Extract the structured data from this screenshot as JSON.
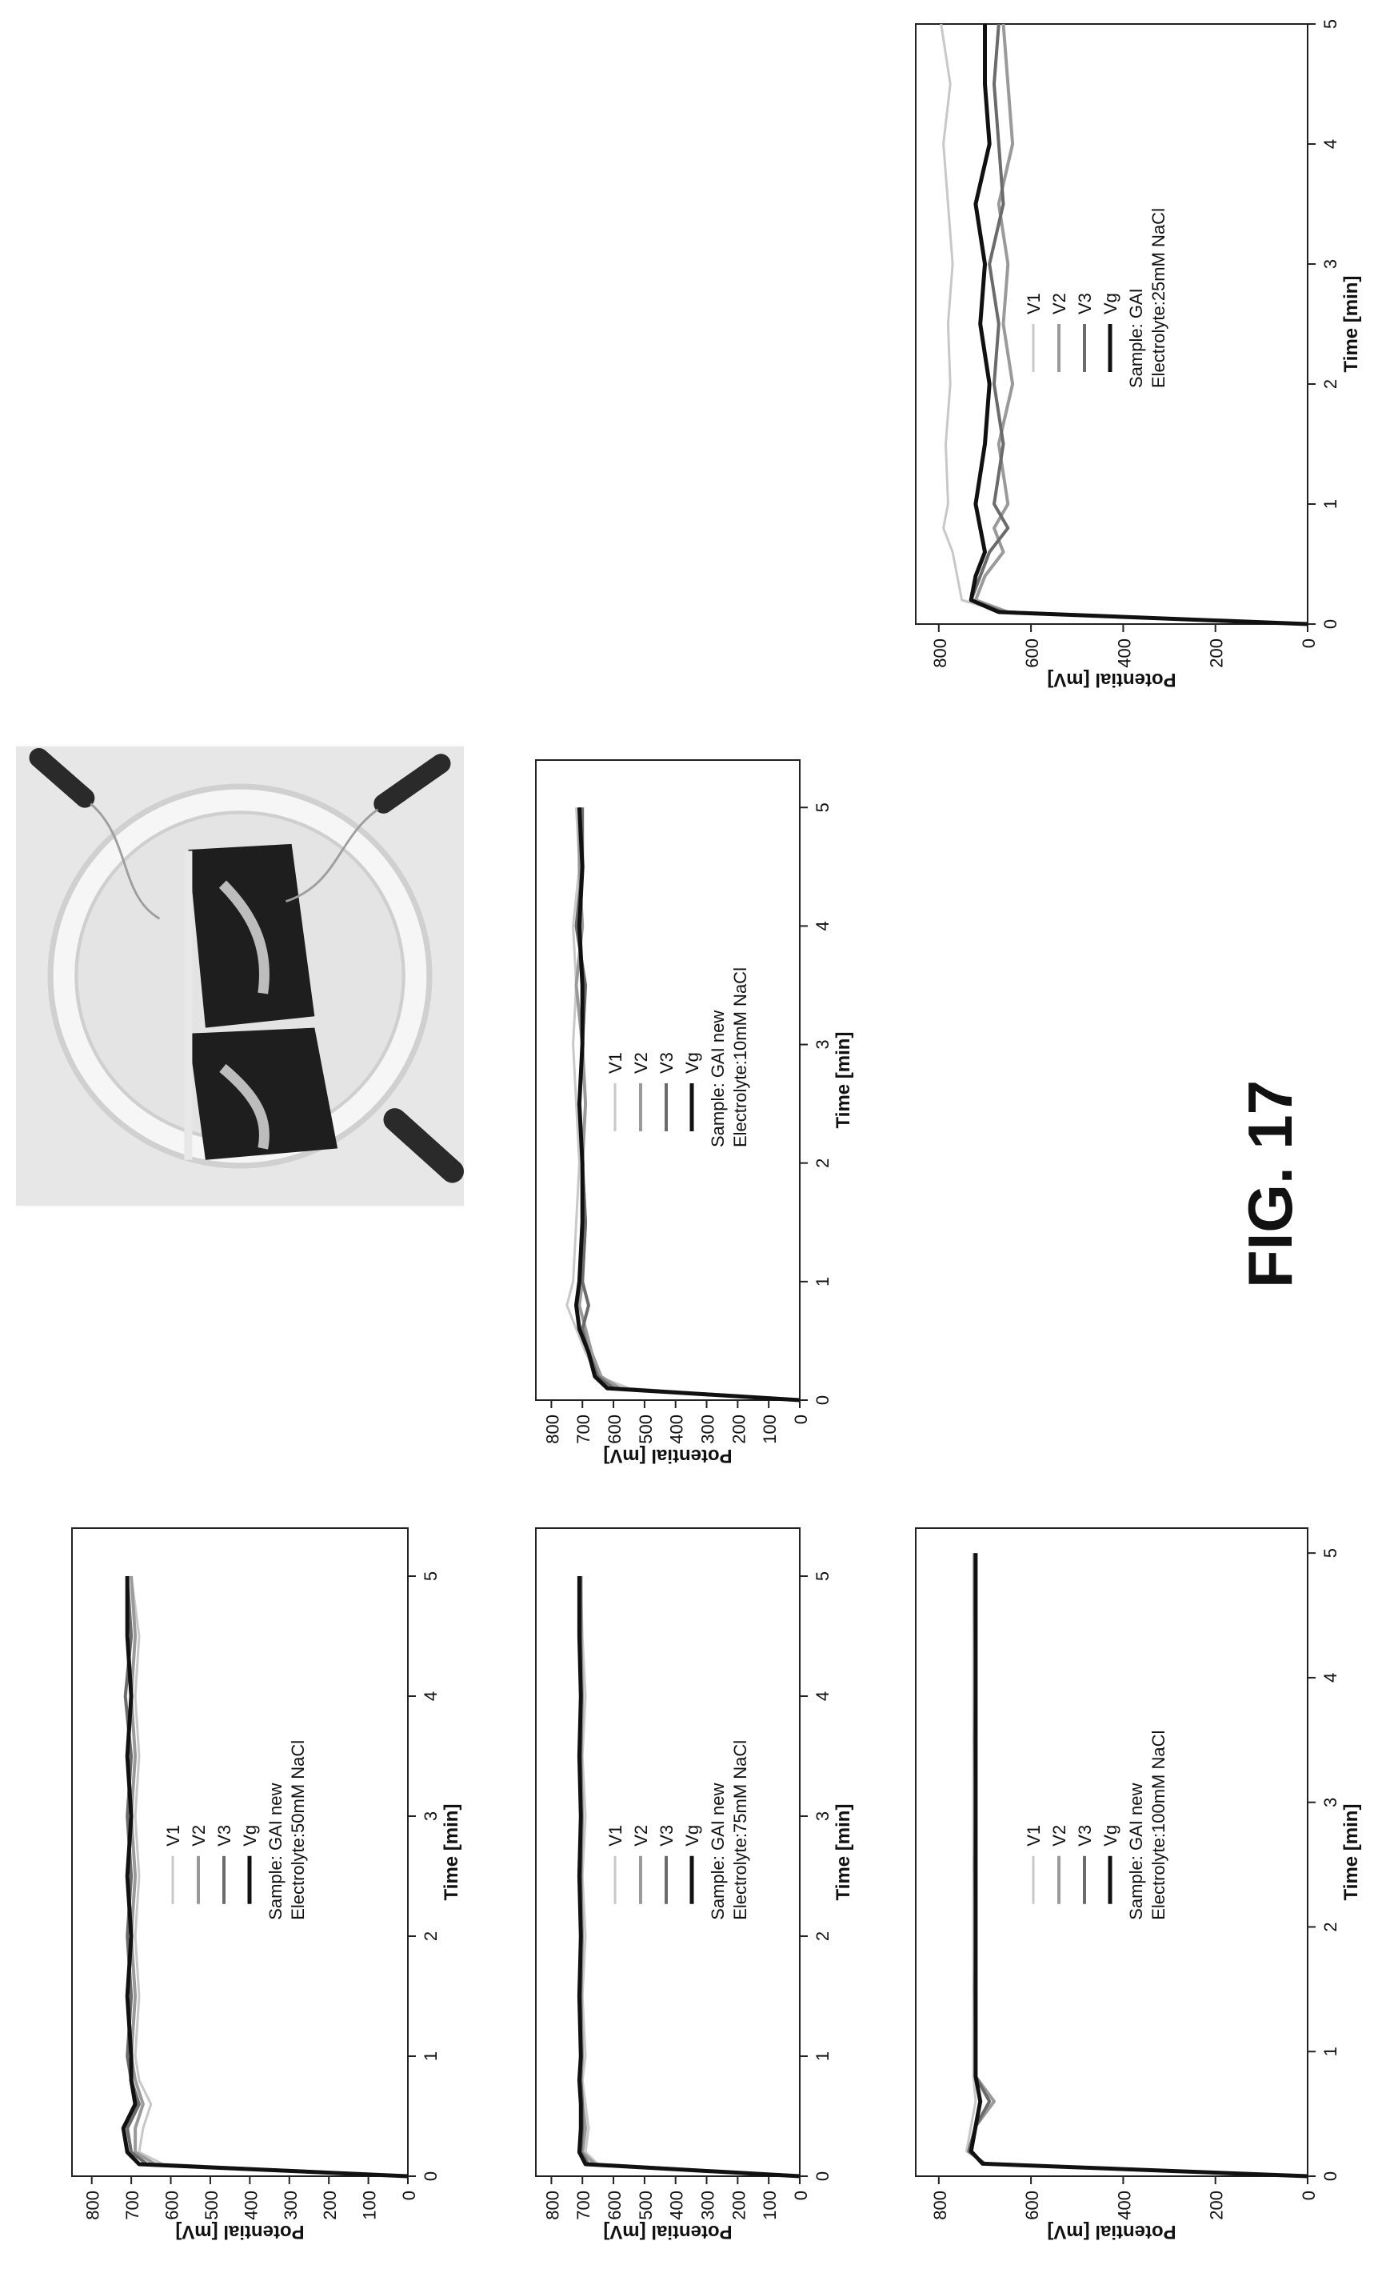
{
  "figure_label": "FIG. 17",
  "colors": {
    "V1": "#c8c8c8",
    "V2": "#9a9a9a",
    "V3": "#6b6b6b",
    "Vg": "#111111"
  },
  "photo": {
    "icon": "electrode-cell-photo"
  },
  "chart_data": [
    {
      "type": "line",
      "xlabel": "Time [min]",
      "ylabel": "Potential [mV]",
      "xlim": [
        0,
        5
      ],
      "ylim": [
        0,
        850
      ],
      "xticks": [
        "0",
        "1",
        "2",
        "3",
        "4",
        "5"
      ],
      "yticks": [
        "0",
        "200",
        "400",
        "600",
        "800"
      ],
      "legend": [
        "V1",
        "V2",
        "V3",
        "Vg"
      ],
      "annotation": [
        "Sample: GAI",
        "Electrolyte:25mM NaCl"
      ],
      "x": [
        0,
        0.1,
        0.2,
        0.4,
        0.6,
        0.8,
        1.0,
        1.5,
        2.0,
        2.5,
        3.0,
        3.5,
        4.0,
        4.5,
        5.0
      ],
      "series": [
        {
          "name": "V1",
          "values": [
            0,
            660,
            750,
            760,
            770,
            790,
            780,
            785,
            775,
            780,
            770,
            780,
            790,
            775,
            795
          ]
        },
        {
          "name": "V2",
          "values": [
            0,
            650,
            720,
            700,
            660,
            680,
            650,
            670,
            640,
            660,
            650,
            670,
            640,
            650,
            660
          ]
        },
        {
          "name": "V3",
          "values": [
            0,
            660,
            730,
            710,
            690,
            650,
            680,
            660,
            680,
            670,
            690,
            660,
            670,
            680,
            670
          ]
        },
        {
          "name": "Vg",
          "values": [
            0,
            670,
            730,
            720,
            700,
            710,
            720,
            700,
            690,
            710,
            700,
            720,
            690,
            700,
            700
          ]
        }
      ]
    },
    {
      "type": "line",
      "xlabel": "Time [min]",
      "ylabel": "Potential [mV]",
      "xlim": [
        0,
        5.4
      ],
      "ylim": [
        0,
        850
      ],
      "xticks": [
        "0",
        "1",
        "2",
        "3",
        "4",
        "5"
      ],
      "yticks": [
        "0",
        "100",
        "200",
        "300",
        "400",
        "500",
        "600",
        "700",
        "800"
      ],
      "legend": [
        "V1",
        "V2",
        "V3",
        "Vg"
      ],
      "annotation": [
        "Sample: GAI new",
        "Electrolyte:10mM NaCl"
      ],
      "x": [
        0,
        0.1,
        0.2,
        0.4,
        0.6,
        0.8,
        1.0,
        1.5,
        2.0,
        2.5,
        3.0,
        3.5,
        4.0,
        4.5,
        5.0
      ],
      "series": [
        {
          "name": "V1",
          "values": [
            0,
            550,
            650,
            690,
            720,
            750,
            730,
            720,
            710,
            720,
            730,
            720,
            730,
            710,
            720
          ]
        },
        {
          "name": "V2",
          "values": [
            0,
            580,
            640,
            670,
            690,
            710,
            700,
            690,
            700,
            690,
            700,
            720,
            700,
            710,
            710
          ]
        },
        {
          "name": "V3",
          "values": [
            0,
            600,
            650,
            680,
            700,
            680,
            700,
            690,
            700,
            710,
            700,
            690,
            720,
            700,
            700
          ]
        },
        {
          "name": "Vg",
          "values": [
            0,
            620,
            660,
            680,
            710,
            720,
            710,
            700,
            700,
            710,
            700,
            700,
            710,
            700,
            710
          ]
        }
      ]
    },
    {
      "type": "line",
      "xlabel": "Time [min]",
      "ylabel": "Potential [mV]",
      "xlim": [
        0,
        5.4
      ],
      "ylim": [
        0,
        850
      ],
      "xticks": [
        "0",
        "1",
        "2",
        "3",
        "4",
        "5"
      ],
      "yticks": [
        "0",
        "100",
        "200",
        "300",
        "400",
        "500",
        "600",
        "700",
        "800"
      ],
      "legend": [
        "V1",
        "V2",
        "V3",
        "Vg"
      ],
      "annotation": [
        "Sample: GAI new",
        "Electrolyte:50mM NaCl"
      ],
      "x": [
        0,
        0.1,
        0.2,
        0.4,
        0.6,
        0.8,
        1.0,
        1.5,
        2.0,
        2.5,
        3.0,
        3.5,
        4.0,
        4.5,
        5.0
      ],
      "series": [
        {
          "name": "V1",
          "values": [
            0,
            620,
            680,
            670,
            650,
            680,
            690,
            680,
            690,
            680,
            690,
            680,
            690,
            680,
            700
          ]
        },
        {
          "name": "V2",
          "values": [
            0,
            640,
            690,
            690,
            670,
            690,
            700,
            690,
            700,
            690,
            700,
            690,
            700,
            690,
            700
          ]
        },
        {
          "name": "V3",
          "values": [
            0,
            660,
            700,
            710,
            680,
            700,
            710,
            700,
            710,
            700,
            710,
            700,
            715,
            700,
            710
          ]
        },
        {
          "name": "Vg",
          "values": [
            0,
            680,
            710,
            720,
            690,
            700,
            700,
            710,
            700,
            710,
            700,
            710,
            700,
            710,
            710
          ]
        }
      ]
    },
    {
      "type": "line",
      "xlabel": "Time [min]",
      "ylabel": "Potential [mV]",
      "xlim": [
        0,
        5.4
      ],
      "ylim": [
        0,
        850
      ],
      "xticks": [
        "0",
        "1",
        "2",
        "3",
        "4",
        "5"
      ],
      "yticks": [
        "0",
        "100",
        "200",
        "300",
        "400",
        "500",
        "600",
        "700",
        "800"
      ],
      "legend": [
        "V1",
        "V2",
        "V3",
        "Vg"
      ],
      "annotation": [
        "Sample: GAI new",
        "Electrolyte:75mM NaCl"
      ],
      "x": [
        0,
        0.1,
        0.2,
        0.4,
        0.6,
        0.8,
        1.0,
        1.5,
        2.0,
        2.5,
        3.0,
        3.5,
        4.0,
        4.5,
        5.0
      ],
      "series": [
        {
          "name": "V1",
          "values": [
            0,
            650,
            690,
            680,
            690,
            700,
            690,
            700,
            690,
            700,
            690,
            700,
            690,
            700,
            705
          ]
        },
        {
          "name": "V2",
          "values": [
            0,
            660,
            700,
            690,
            700,
            705,
            700,
            705,
            700,
            705,
            700,
            705,
            700,
            705,
            705
          ]
        },
        {
          "name": "V3",
          "values": [
            0,
            680,
            705,
            700,
            700,
            705,
            705,
            705,
            705,
            705,
            705,
            705,
            705,
            705,
            705
          ]
        },
        {
          "name": "Vg",
          "values": [
            0,
            690,
            710,
            705,
            705,
            710,
            705,
            710,
            705,
            710,
            705,
            710,
            705,
            710,
            710
          ]
        }
      ]
    },
    {
      "type": "line",
      "xlabel": "Time [min]",
      "ylabel": "Potential [mV]",
      "xlim": [
        0,
        5.2
      ],
      "ylim": [
        0,
        850
      ],
      "xticks": [
        "0",
        "1",
        "2",
        "3",
        "4",
        "5"
      ],
      "yticks": [
        "0",
        "200",
        "400",
        "600",
        "800"
      ],
      "legend": [
        "V1",
        "V2",
        "V3",
        "Vg"
      ],
      "annotation": [
        "Sample: GAI new",
        "Electrolyte:100mM NaCl"
      ],
      "x": [
        0,
        0.1,
        0.2,
        0.4,
        0.6,
        0.8,
        1.0,
        1.5,
        2.0,
        2.5,
        3.0,
        3.5,
        4.0,
        4.5,
        5.0
      ],
      "series": [
        {
          "name": "V1",
          "values": [
            0,
            700,
            740,
            730,
            720,
            725,
            725,
            725,
            725,
            725,
            725,
            725,
            725,
            725,
            725
          ]
        },
        {
          "name": "V2",
          "values": [
            0,
            700,
            735,
            720,
            680,
            720,
            720,
            722,
            720,
            722,
            720,
            722,
            720,
            722,
            722
          ]
        },
        {
          "name": "V3",
          "values": [
            0,
            700,
            735,
            720,
            690,
            720,
            720,
            721,
            720,
            721,
            720,
            721,
            720,
            721,
            721
          ]
        },
        {
          "name": "Vg",
          "values": [
            0,
            705,
            730,
            720,
            710,
            720,
            720,
            720,
            720,
            720,
            720,
            720,
            720,
            720,
            720
          ]
        }
      ]
    }
  ]
}
